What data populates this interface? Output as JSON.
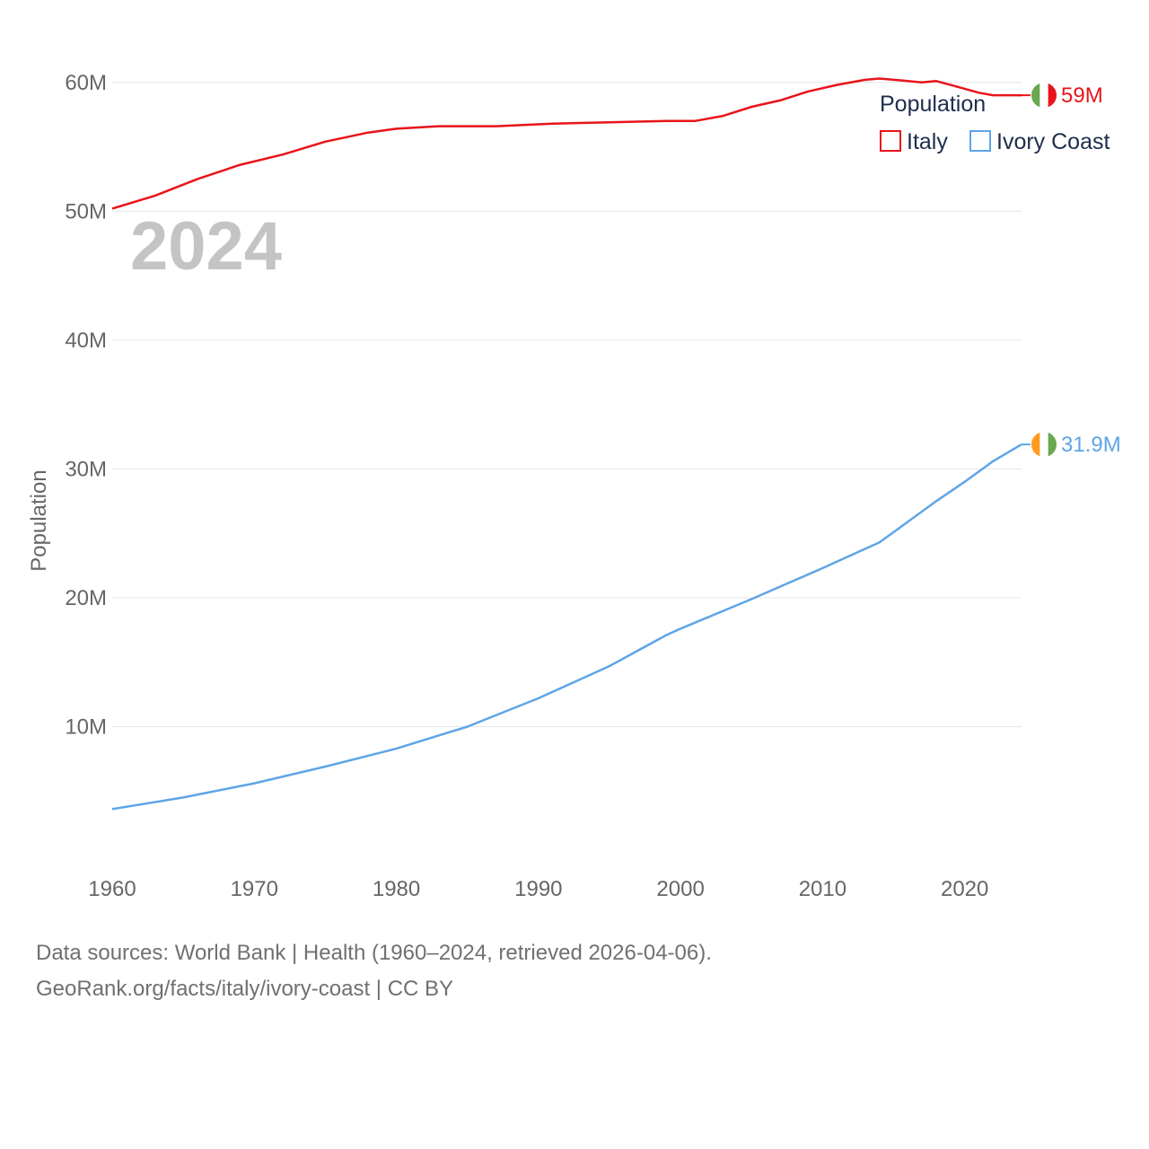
{
  "chart_data": {
    "type": "line",
    "title": "Population",
    "year_label": "2024",
    "ylabel": "Population",
    "xlabel": "",
    "xlim": [
      1960,
      2024
    ],
    "ylim": [
      0,
      65000000
    ],
    "x_ticks": [
      1960,
      1970,
      1980,
      1990,
      2000,
      2010,
      2020
    ],
    "x_tick_labels": [
      "1960",
      "1970",
      "1980",
      "1990",
      "2000",
      "2010",
      "2020"
    ],
    "y_ticks": [
      10000000,
      20000000,
      30000000,
      40000000,
      50000000,
      60000000
    ],
    "y_tick_labels": [
      "10M",
      "20M",
      "30M",
      "40M",
      "50M",
      "60M"
    ],
    "legend": {
      "title": "Population",
      "placement": "top-right"
    },
    "series": [
      {
        "name": "Italy",
        "color": "#e8141a",
        "end_label": "59M",
        "flag": "italy-flag",
        "x": [
          1960,
          1963,
          1966,
          1969,
          1972,
          1975,
          1978,
          1980,
          1983,
          1987,
          1991,
          1995,
          1999,
          2001,
          2003,
          2005,
          2007,
          2009,
          2011,
          2013,
          2014,
          2016,
          2017,
          2018,
          2019,
          2020,
          2021,
          2022,
          2023,
          2024
        ],
        "y": [
          50200000,
          51200000,
          52500000,
          53600000,
          54400000,
          55400000,
          56100000,
          56400000,
          56600000,
          56600000,
          56800000,
          56900000,
          57000000,
          57000000,
          57400000,
          58100000,
          58600000,
          59300000,
          59800000,
          60200000,
          60300000,
          60100000,
          60000000,
          60100000,
          59800000,
          59500000,
          59200000,
          59000000,
          59000000,
          59000000
        ]
      },
      {
        "name": "Ivory Coast",
        "color": "#5da5e6",
        "end_label": "31.9M",
        "flag": "ivory-coast-flag",
        "x": [
          1960,
          1965,
          1970,
          1975,
          1980,
          1985,
          1990,
          1995,
          1999,
          2000,
          2005,
          2010,
          2013,
          2014,
          2016,
          2018,
          2020,
          2022,
          2024
        ],
        "y": [
          3600000,
          4500000,
          5600000,
          6900000,
          8300000,
          10000000,
          12200000,
          14700000,
          17100000,
          17600000,
          19900000,
          22300000,
          23800000,
          24300000,
          25900000,
          27500000,
          29000000,
          30600000,
          31900000
        ]
      }
    ]
  },
  "source": {
    "line1": "Data sources: World Bank | Health (1960–2024, retrieved 2026-04-06).",
    "line2": "GeoRank.org/facts/italy/ivory-coast | CC BY"
  }
}
